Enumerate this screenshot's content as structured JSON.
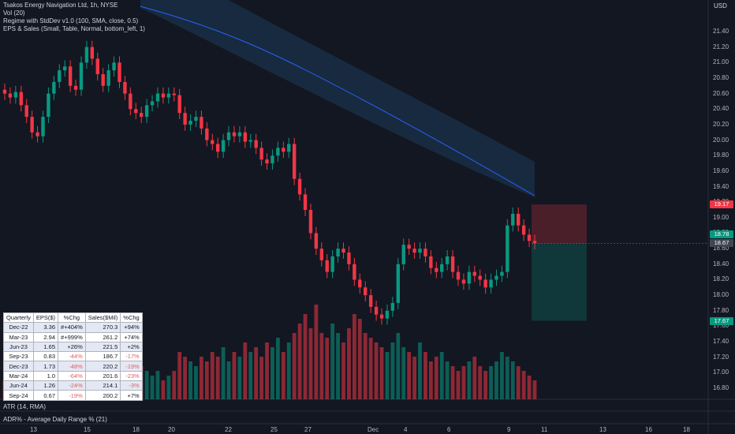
{
  "legend": {
    "title": "Tsakos Energy Navigation Ltd, 1h, NYSE",
    "vol": "Vol (20)",
    "regime": "Regime with StdDev v1.0 (100, SMA, close, 0.5)",
    "eps": "EPS & Sales (Small, Table, Normal, bottom_left, 1)"
  },
  "currency": "USD",
  "price_axis": [
    "21.40",
    "21.20",
    "21.00",
    "20.80",
    "20.60",
    "20.40",
    "20.20",
    "20.00",
    "19.80",
    "19.60",
    "19.40",
    "19.20",
    "19.00",
    "18.80",
    "18.60",
    "18.40",
    "18.20",
    "18.00",
    "17.80",
    "17.60",
    "17.40",
    "17.20",
    "17.00",
    "16.80"
  ],
  "price_tags": [
    {
      "label": "19.17",
      "color": "#f23645"
    },
    {
      "label": "18.78",
      "color": "#089981"
    },
    {
      "label": "18.67",
      "color": "#434651"
    },
    {
      "label": "17.67",
      "color": "#089981"
    }
  ],
  "time_axis": [
    "13",
    "15",
    "18",
    "20",
    "22",
    "25",
    "27",
    "Dec",
    "4",
    "6",
    "9",
    "11",
    "13",
    "16",
    "18"
  ],
  "lower_panes": {
    "atr": "ATR (14, RMA)",
    "adr": "ADR% - Average Daily Range % (21)"
  },
  "eps_table": {
    "headers": [
      "Quarterly",
      "EPS($)",
      "%Chg",
      "Sales($Mil)",
      "%Chg"
    ],
    "rows": [
      [
        "Dec-22",
        "3.36",
        "#+404%",
        "270.3",
        "+94%"
      ],
      [
        "Mar-23",
        "2.94",
        "#+999%",
        "261.2",
        "+74%"
      ],
      [
        "Jun-23",
        "1.65",
        "+26%",
        "221.5",
        "+2%"
      ],
      [
        "Sep-23",
        "0.83",
        "-44%",
        "186.7",
        "-17%"
      ],
      [
        "Dec-23",
        "1.73",
        "-48%",
        "220.2",
        "-19%"
      ],
      [
        "Mar-24",
        "1.0",
        "-64%",
        "201.6",
        "-23%"
      ],
      [
        "Jun-24",
        "1.26",
        "-24%",
        "214.1",
        "-3%"
      ],
      [
        "Sep-24",
        "0.67",
        "-19%",
        "200.2",
        "+7%"
      ]
    ]
  },
  "colors": {
    "up": "#089981",
    "down": "#f23645",
    "background": "#131722",
    "band": "#1c3a57",
    "ma": "#2962ff"
  },
  "chart_data": {
    "type": "candlestick",
    "ylim": [
      16.7,
      21.5
    ],
    "entry": 18.67,
    "stop": 19.17,
    "target": 17.67,
    "closes": [
      20.6,
      20.55,
      20.62,
      20.45,
      20.3,
      20.1,
      20.05,
      20.3,
      20.6,
      20.75,
      20.9,
      20.95,
      20.7,
      20.65,
      21.0,
      21.2,
      21.05,
      20.85,
      20.7,
      20.9,
      21.0,
      20.75,
      20.6,
      20.4,
      20.35,
      20.3,
      20.45,
      20.5,
      20.6,
      20.55,
      20.6,
      20.58,
      20.35,
      20.2,
      20.25,
      20.3,
      20.15,
      20.0,
      19.95,
      19.85,
      20.0,
      20.1,
      20.05,
      20.1,
      19.98,
      20.0,
      19.9,
      19.75,
      19.7,
      19.8,
      19.9,
      19.85,
      19.95,
      19.5,
      19.3,
      19.1,
      18.8,
      18.6,
      18.45,
      18.3,
      18.5,
      18.6,
      18.55,
      18.4,
      18.2,
      18.1,
      18.0,
      17.85,
      17.75,
      17.7,
      17.8,
      17.9,
      18.4,
      18.65,
      18.6,
      18.55,
      18.6,
      18.5,
      18.35,
      18.3,
      18.4,
      18.5,
      18.3,
      18.2,
      18.15,
      18.3,
      18.25,
      18.2,
      18.1,
      18.2,
      18.25,
      18.3,
      18.9,
      19.05,
      18.9,
      18.78,
      18.7,
      18.67
    ],
    "volumes": [
      0.2,
      0.25,
      0.3,
      0.2,
      0.35,
      0.3,
      0.25,
      0.3,
      0.4,
      0.35,
      0.3,
      0.25,
      0.2,
      0.3,
      0.45,
      0.4,
      0.3,
      0.25,
      0.2,
      0.3,
      0.35,
      0.3,
      0.25,
      0.4,
      0.3,
      0.35,
      0.3,
      0.25,
      0.3,
      0.2,
      0.25,
      0.3,
      0.5,
      0.45,
      0.4,
      0.35,
      0.45,
      0.4,
      0.5,
      0.45,
      0.55,
      0.4,
      0.5,
      0.45,
      0.6,
      0.5,
      0.55,
      0.45,
      0.6,
      0.55,
      0.65,
      0.5,
      0.6,
      0.7,
      0.8,
      0.9,
      0.75,
      1.0,
      0.7,
      0.65,
      0.8,
      0.7,
      0.6,
      0.75,
      0.9,
      0.85,
      0.7,
      0.65,
      0.6,
      0.55,
      0.5,
      0.6,
      0.7,
      0.55,
      0.5,
      0.45,
      0.6,
      0.5,
      0.4,
      0.45,
      0.5,
      0.4,
      0.35,
      0.3,
      0.35,
      0.4,
      0.45,
      0.35,
      0.3,
      0.35,
      0.4,
      0.5,
      0.45,
      0.4,
      0.35,
      0.3,
      0.25,
      0.2
    ]
  }
}
